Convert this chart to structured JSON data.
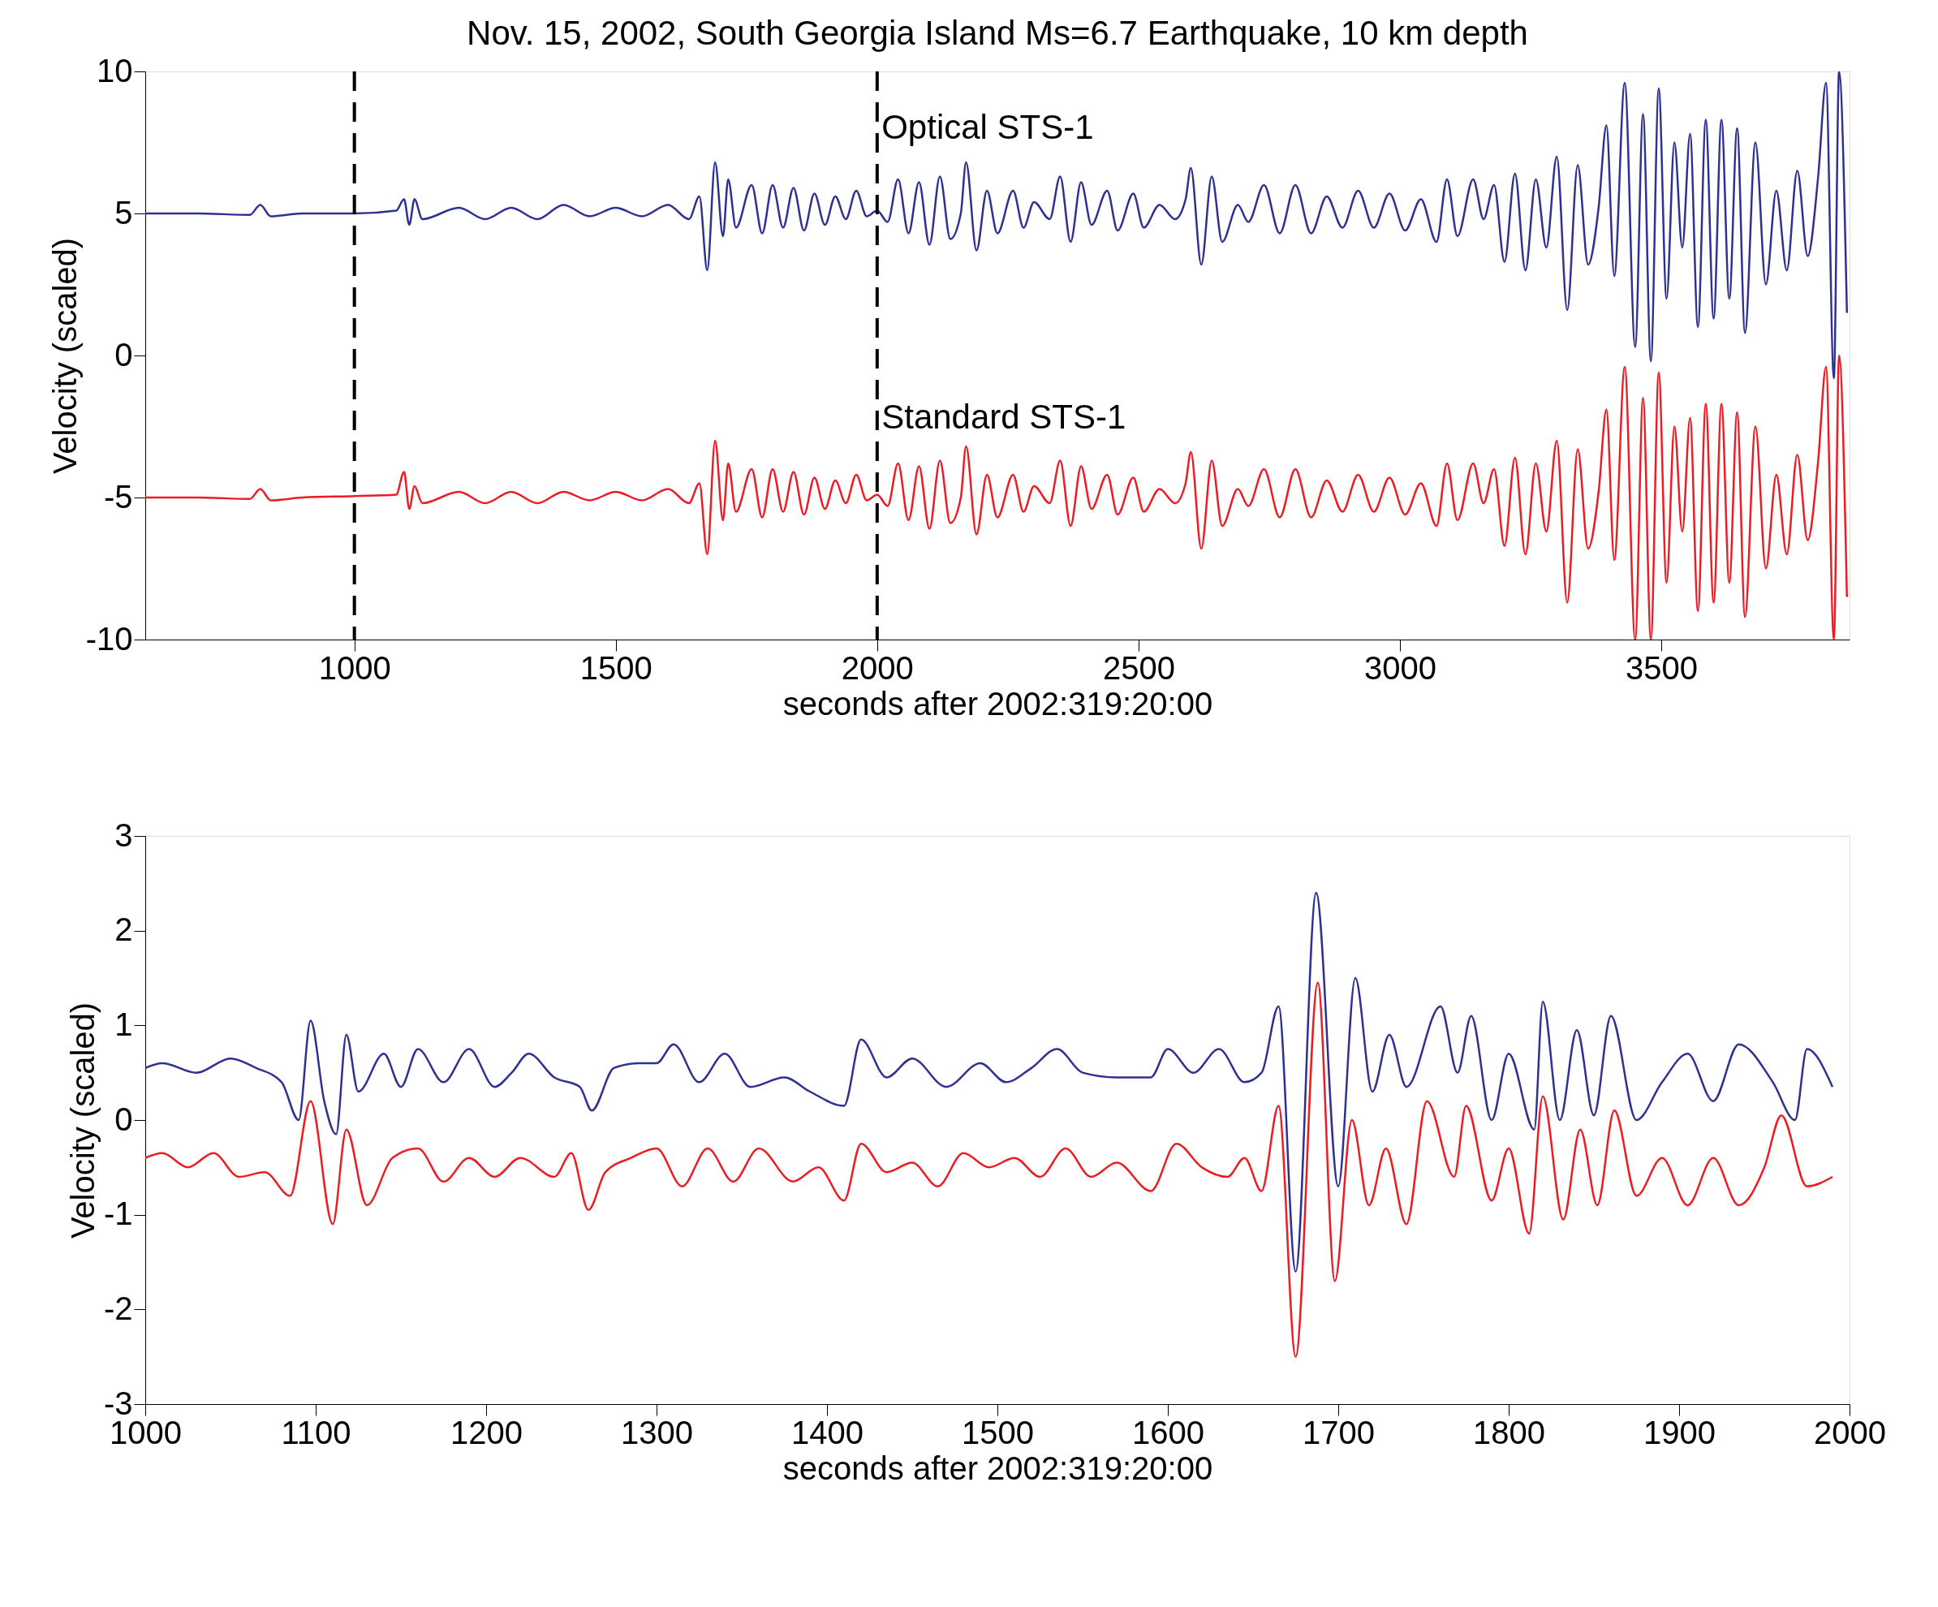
{
  "chart_data": [
    {
      "type": "line",
      "title": "Nov. 15, 2002, South Georgia Island Ms=6.7 Earthquake, 10 km depth",
      "xlabel": "seconds after 2002:319:20:00",
      "ylabel": "Velocity (scaled)",
      "xlim": [
        600,
        3860
      ],
      "xticks": [
        1000,
        1500,
        2000,
        2500,
        3000,
        3500
      ],
      "ylim": [
        -10,
        10
      ],
      "yticks": [
        -10,
        -5,
        0,
        5,
        10
      ],
      "grid": false,
      "line_style": "solid",
      "marker": "none",
      "ref_lines": [
        {
          "axis": "x",
          "value": 1000,
          "color": "#000000",
          "line_style": "dashed"
        },
        {
          "axis": "x",
          "value": 2000,
          "color": "#000000",
          "line_style": "dashed"
        }
      ],
      "series": [
        {
          "name": "Optical STS-1",
          "color": "#2e3192",
          "x": [
            600,
            700,
            800,
            820,
            840,
            900,
            1000,
            1080,
            1095,
            1105,
            1115,
            1130,
            1200,
            1250,
            1300,
            1350,
            1400,
            1450,
            1500,
            1550,
            1600,
            1640,
            1660,
            1675,
            1690,
            1705,
            1715,
            1730,
            1760,
            1780,
            1800,
            1820,
            1840,
            1860,
            1880,
            1900,
            1920,
            1940,
            1960,
            1980,
            2000,
            2020,
            2040,
            2060,
            2080,
            2100,
            2120,
            2140,
            2160,
            2170,
            2190,
            2210,
            2230,
            2260,
            2280,
            2300,
            2330,
            2350,
            2370,
            2390,
            2410,
            2440,
            2460,
            2490,
            2510,
            2540,
            2570,
            2590,
            2600,
            2620,
            2640,
            2660,
            2690,
            2710,
            2740,
            2770,
            2800,
            2830,
            2860,
            2890,
            2920,
            2950,
            2980,
            3010,
            3040,
            3070,
            3090,
            3110,
            3140,
            3160,
            3180,
            3200,
            3220,
            3240,
            3260,
            3280,
            3300,
            3320,
            3340,
            3360,
            3380,
            3395,
            3410,
            3430,
            3450,
            3465,
            3480,
            3495,
            3510,
            3525,
            3540,
            3555,
            3570,
            3585,
            3600,
            3615,
            3630,
            3645,
            3660,
            3680,
            3700,
            3720,
            3740,
            3760,
            3780,
            3800,
            3815,
            3830,
            3840,
            3855
          ],
          "values": [
            5.0,
            5.0,
            4.95,
            5.3,
            4.9,
            5.0,
            5.0,
            5.1,
            5.5,
            4.6,
            5.5,
            4.8,
            5.2,
            4.8,
            5.2,
            4.8,
            5.3,
            4.9,
            5.2,
            4.9,
            5.3,
            4.8,
            5.6,
            3.0,
            6.8,
            4.2,
            6.2,
            4.5,
            6.0,
            4.3,
            6.0,
            4.5,
            5.9,
            4.4,
            5.7,
            4.6,
            5.6,
            4.8,
            5.8,
            4.9,
            5.1,
            4.7,
            6.2,
            4.3,
            6.1,
            3.9,
            6.3,
            4.1,
            5.0,
            6.8,
            3.7,
            5.8,
            4.3,
            5.8,
            4.5,
            5.4,
            4.8,
            6.3,
            4.0,
            6.1,
            4.6,
            5.8,
            4.4,
            5.7,
            4.5,
            5.3,
            4.8,
            5.5,
            6.6,
            3.2,
            6.3,
            4.0,
            5.3,
            4.7,
            6.0,
            4.3,
            6.0,
            4.3,
            5.6,
            4.5,
            5.8,
            4.5,
            5.7,
            4.4,
            5.5,
            4.0,
            6.2,
            4.2,
            6.2,
            4.8,
            6.0,
            3.3,
            6.4,
            3.0,
            6.2,
            3.8,
            7.0,
            1.6,
            6.7,
            3.2,
            5.2,
            8.1,
            2.8,
            9.6,
            0.3,
            8.5,
            -0.2,
            9.4,
            2.0,
            7.5,
            3.8,
            7.8,
            1.0,
            8.3,
            1.3,
            8.3,
            2.0,
            8.0,
            0.8,
            7.5,
            2.5,
            5.8,
            3.0,
            6.5,
            3.5,
            6.3,
            9.6,
            -0.8,
            10.0,
            1.5
          ]
        },
        {
          "name": "Standard STS-1",
          "color": "#ed1c24",
          "x": [
            600,
            700,
            800,
            820,
            840,
            900,
            1000,
            1080,
            1095,
            1105,
            1115,
            1130,
            1200,
            1250,
            1300,
            1350,
            1400,
            1450,
            1500,
            1550,
            1600,
            1640,
            1660,
            1675,
            1690,
            1705,
            1715,
            1730,
            1760,
            1780,
            1800,
            1820,
            1840,
            1860,
            1880,
            1900,
            1920,
            1940,
            1960,
            1980,
            2000,
            2020,
            2040,
            2060,
            2080,
            2100,
            2120,
            2140,
            2160,
            2170,
            2190,
            2210,
            2230,
            2260,
            2280,
            2300,
            2330,
            2350,
            2370,
            2390,
            2410,
            2440,
            2460,
            2490,
            2510,
            2540,
            2570,
            2590,
            2600,
            2620,
            2640,
            2660,
            2690,
            2710,
            2740,
            2770,
            2800,
            2830,
            2860,
            2890,
            2920,
            2950,
            2980,
            3010,
            3040,
            3070,
            3090,
            3110,
            3140,
            3160,
            3180,
            3200,
            3220,
            3240,
            3260,
            3280,
            3300,
            3320,
            3340,
            3360,
            3380,
            3395,
            3410,
            3430,
            3450,
            3465,
            3480,
            3495,
            3510,
            3525,
            3540,
            3555,
            3570,
            3585,
            3600,
            3615,
            3630,
            3645,
            3660,
            3680,
            3700,
            3720,
            3740,
            3760,
            3780,
            3800,
            3815,
            3830,
            3840,
            3855
          ],
          "values": [
            -5.0,
            -5.0,
            -5.05,
            -4.7,
            -5.1,
            -5.0,
            -4.95,
            -4.9,
            -4.1,
            -5.4,
            -4.6,
            -5.2,
            -4.8,
            -5.2,
            -4.8,
            -5.2,
            -4.8,
            -5.1,
            -4.8,
            -5.1,
            -4.7,
            -5.2,
            -4.5,
            -7.0,
            -3.0,
            -5.8,
            -3.8,
            -5.5,
            -4.0,
            -5.7,
            -4.0,
            -5.5,
            -4.1,
            -5.6,
            -4.3,
            -5.4,
            -4.4,
            -5.2,
            -4.2,
            -5.1,
            -4.9,
            -5.3,
            -3.8,
            -5.8,
            -3.9,
            -6.1,
            -3.7,
            -5.9,
            -5.0,
            -3.2,
            -6.3,
            -4.2,
            -5.7,
            -4.2,
            -5.5,
            -4.6,
            -5.2,
            -3.7,
            -6.0,
            -3.9,
            -5.4,
            -4.2,
            -5.6,
            -4.3,
            -5.5,
            -4.7,
            -5.2,
            -4.5,
            -3.4,
            -6.8,
            -3.7,
            -6.0,
            -4.7,
            -5.3,
            -4.0,
            -5.7,
            -4.0,
            -5.7,
            -4.4,
            -5.5,
            -4.2,
            -5.5,
            -4.3,
            -5.6,
            -4.5,
            -6.0,
            -3.8,
            -5.8,
            -3.8,
            -5.2,
            -4.0,
            -6.7,
            -3.6,
            -7.0,
            -3.8,
            -6.2,
            -3.0,
            -8.7,
            -3.3,
            -6.8,
            -4.8,
            -1.9,
            -7.2,
            -0.4,
            -10.0,
            -1.5,
            -10.0,
            -0.6,
            -8.0,
            -2.5,
            -6.2,
            -2.2,
            -9.0,
            -1.7,
            -8.7,
            -1.7,
            -8.0,
            -2.0,
            -9.2,
            -2.5,
            -7.5,
            -4.2,
            -7.0,
            -3.5,
            -6.5,
            -3.7,
            -0.4,
            -10.0,
            0.0,
            -8.5
          ]
        }
      ]
    },
    {
      "type": "line",
      "xlabel": "seconds after 2002:319:20:00",
      "ylabel": "Velocity (scaled)",
      "xlim": [
        1000,
        2000
      ],
      "xticks": [
        1000,
        1100,
        1200,
        1300,
        1400,
        1500,
        1600,
        1700,
        1800,
        1900,
        2000
      ],
      "ylim": [
        -3,
        3
      ],
      "yticks": [
        -3,
        -2,
        -1,
        0,
        1,
        2,
        3
      ],
      "grid": false,
      "line_style": "solid",
      "marker": "none",
      "series": [
        {
          "color": "#2e3192",
          "x": [
            1000,
            1010,
            1030,
            1050,
            1065,
            1080,
            1090,
            1097,
            1105,
            1112,
            1118,
            1125,
            1140,
            1150,
            1160,
            1175,
            1190,
            1205,
            1215,
            1225,
            1240,
            1255,
            1262,
            1275,
            1290,
            1300,
            1310,
            1325,
            1340,
            1355,
            1375,
            1390,
            1410,
            1420,
            1435,
            1450,
            1470,
            1490,
            1505,
            1520,
            1535,
            1550,
            1570,
            1590,
            1600,
            1615,
            1630,
            1645,
            1655,
            1665,
            1675,
            1687,
            1700,
            1710,
            1720,
            1730,
            1740,
            1760,
            1770,
            1778,
            1790,
            1800,
            1815,
            1820,
            1830,
            1840,
            1850,
            1860,
            1875,
            1890,
            1905,
            1920,
            1935,
            1955,
            1968,
            1975,
            1990
          ],
          "values": [
            0.55,
            0.6,
            0.5,
            0.65,
            0.55,
            0.4,
            0.0,
            1.05,
            0.2,
            -0.15,
            0.9,
            0.3,
            0.7,
            0.35,
            0.75,
            0.4,
            0.75,
            0.35,
            0.5,
            0.7,
            0.45,
            0.35,
            0.1,
            0.55,
            0.6,
            0.6,
            0.8,
            0.4,
            0.7,
            0.35,
            0.45,
            0.3,
            0.15,
            0.85,
            0.45,
            0.65,
            0.35,
            0.6,
            0.4,
            0.55,
            0.75,
            0.5,
            0.45,
            0.45,
            0.75,
            0.5,
            0.75,
            0.4,
            0.5,
            1.2,
            -1.6,
            2.4,
            -0.7,
            1.5,
            0.3,
            0.9,
            0.35,
            1.2,
            0.5,
            1.1,
            0.0,
            0.7,
            -0.1,
            1.25,
            0.0,
            0.95,
            0.05,
            1.1,
            0.0,
            0.4,
            0.7,
            0.2,
            0.8,
            0.4,
            0.0,
            0.75,
            0.35
          ]
        },
        {
          "color": "#ed1c24",
          "x": [
            1000,
            1010,
            1025,
            1040,
            1055,
            1070,
            1085,
            1097,
            1110,
            1118,
            1130,
            1145,
            1160,
            1175,
            1190,
            1205,
            1220,
            1240,
            1250,
            1260,
            1270,
            1285,
            1300,
            1315,
            1330,
            1345,
            1360,
            1380,
            1395,
            1410,
            1420,
            1435,
            1450,
            1465,
            1480,
            1495,
            1510,
            1525,
            1540,
            1555,
            1570,
            1590,
            1605,
            1620,
            1635,
            1645,
            1655,
            1665,
            1675,
            1688,
            1698,
            1708,
            1718,
            1728,
            1740,
            1752,
            1768,
            1775,
            1790,
            1800,
            1812,
            1820,
            1832,
            1842,
            1852,
            1862,
            1875,
            1890,
            1905,
            1920,
            1935,
            1950,
            1960,
            1975,
            1990
          ],
          "values": [
            -0.4,
            -0.35,
            -0.5,
            -0.35,
            -0.6,
            -0.55,
            -0.8,
            0.2,
            -1.1,
            -0.1,
            -0.9,
            -0.4,
            -0.3,
            -0.65,
            -0.4,
            -0.6,
            -0.4,
            -0.6,
            -0.35,
            -0.95,
            -0.55,
            -0.4,
            -0.3,
            -0.7,
            -0.3,
            -0.65,
            -0.3,
            -0.65,
            -0.5,
            -0.85,
            -0.25,
            -0.55,
            -0.45,
            -0.7,
            -0.35,
            -0.5,
            -0.4,
            -0.6,
            -0.3,
            -0.6,
            -0.45,
            -0.75,
            -0.25,
            -0.5,
            -0.6,
            -0.4,
            -0.75,
            0.15,
            -2.5,
            1.45,
            -1.7,
            0.0,
            -0.9,
            -0.3,
            -1.1,
            0.2,
            -0.6,
            0.15,
            -0.85,
            -0.3,
            -1.2,
            0.25,
            -1.05,
            -0.1,
            -0.9,
            0.1,
            -0.8,
            -0.4,
            -0.9,
            -0.4,
            -0.9,
            -0.5,
            0.05,
            -0.7,
            -0.6
          ]
        }
      ]
    }
  ]
}
